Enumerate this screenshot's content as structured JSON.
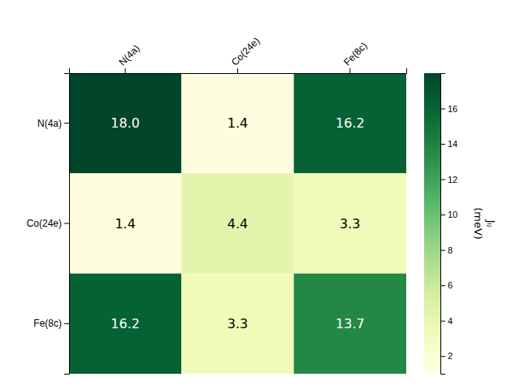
{
  "chart_data": {
    "type": "heatmap",
    "categories": [
      "N(4a)",
      "Co(24e)",
      "Fe(8c)"
    ],
    "values": [
      [
        18.0,
        1.4,
        16.2
      ],
      [
        1.4,
        4.4,
        3.3
      ],
      [
        16.2,
        3.3,
        13.7
      ]
    ],
    "value_labels": [
      [
        "18.0",
        "1.4",
        "16.2"
      ],
      [
        "1.4",
        "4.4",
        "3.3"
      ],
      [
        "16.2",
        "3.3",
        "13.7"
      ]
    ],
    "data_labels": true,
    "colorbar_range": [
      1.0,
      18.0
    ],
    "colorbar_ticks": [
      2,
      4,
      6,
      8,
      10,
      12,
      14,
      16
    ],
    "colorbar_label": "Jᵢⱼ\n(meV)"
  }
}
